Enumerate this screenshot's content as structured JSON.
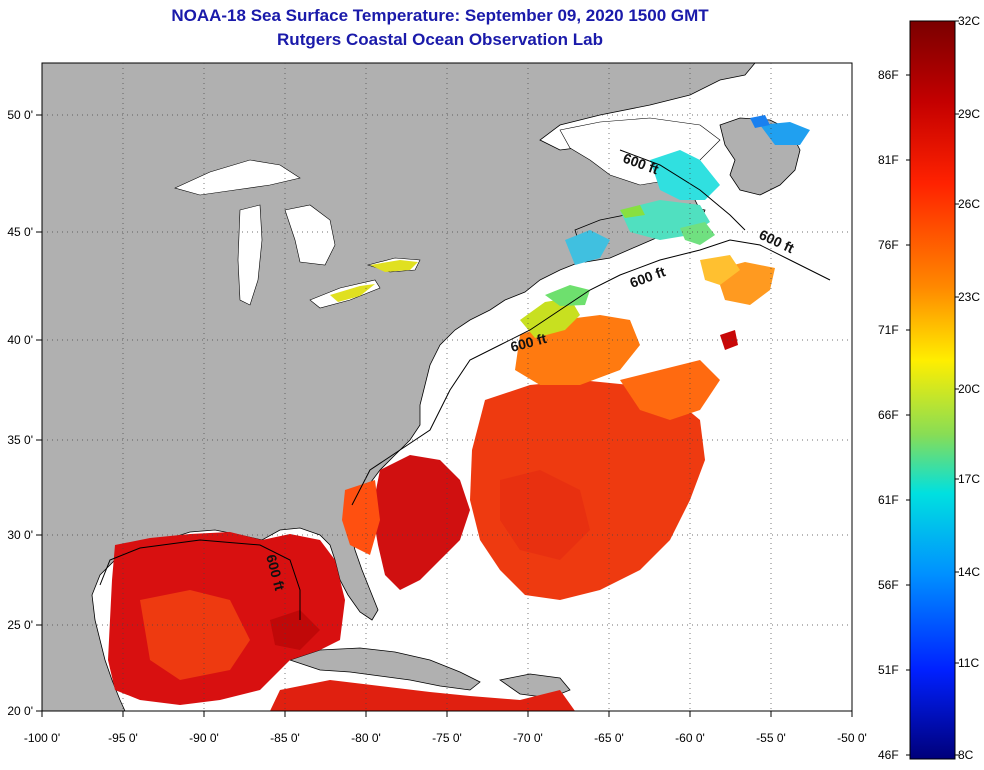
{
  "header": {
    "title": "NOAA-18 Sea Surface Temperature:  September 09, 2020 1500 GMT",
    "subtitle": "Rutgers Coastal Ocean Observation Lab"
  },
  "axes": {
    "lon_ticks": [
      "-100 0'",
      "-95 0'",
      "-90 0'",
      "-85 0'",
      "-80 0'",
      "-75 0'",
      "-70 0'",
      "-65 0'",
      "-60 0'",
      "-55 0'",
      "-50 0'"
    ],
    "lat_ticks": [
      "50 0'",
      "45 0'",
      "40 0'",
      "35 0'",
      "30 0'",
      "25 0'",
      "20 0'"
    ]
  },
  "contour_label": "600 ft",
  "colorbar": {
    "celsius_labels": [
      "32C",
      "29C",
      "26C",
      "23C",
      "20C",
      "17C",
      "14C",
      "11C",
      "8C"
    ],
    "fahrenheit_labels": [
      "86F",
      "81F",
      "76F",
      "71F",
      "66F",
      "61F",
      "56F",
      "51F",
      "46F"
    ],
    "colors": [
      "#7a0000",
      "#c40000",
      "#ff2200",
      "#ff8800",
      "#ffee00",
      "#88dd55",
      "#00e0e0",
      "#0090ff",
      "#0020ff",
      "#00007a"
    ]
  }
}
